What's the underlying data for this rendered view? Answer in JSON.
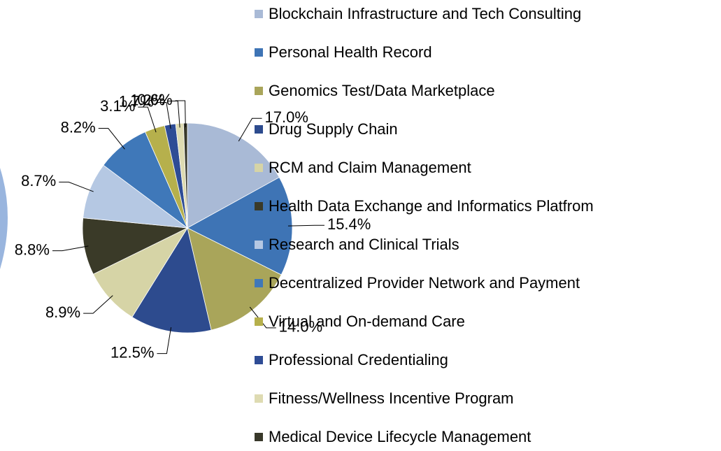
{
  "chart_data": {
    "type": "pie",
    "categories": [
      "Blockchain Infrastructure and Tech Consulting",
      "Personal Health Record",
      "Genomics Test/Data Marketplace",
      "Drug Supply Chain",
      "RCM and Claim Management",
      "Health Data Exchange and Informatics Platfrom",
      "Research and Clinical Trials",
      "Decentralized Provider Network and Payment",
      "Virtual and On-demand Care",
      "Professional Credentialing",
      "Fitness/Wellness Incentive Program",
      "Medical Device Lifecycle Management"
    ],
    "values": [
      17.0,
      15.4,
      14.0,
      12.5,
      8.9,
      8.8,
      8.7,
      8.2,
      3.1,
      1.7,
      1.2,
      0.6
    ],
    "value_labels": [
      "17.0%",
      "15.4%",
      "14.0%",
      "12.5%",
      "8.9%",
      "8.8%",
      "8.7%",
      "8.2%",
      "3.1%",
      "1.7%",
      "1.2%",
      "0.6%"
    ],
    "colors": [
      "#a9bad6",
      "#3e74b5",
      "#a9a55a",
      "#2d4b8e",
      "#d6d4a6",
      "#3a3a28",
      "#b5c8e3",
      "#3f78b9",
      "#b6b04c",
      "#2e4c95",
      "#dedbb2",
      "#38382a"
    ],
    "legend": "right"
  }
}
